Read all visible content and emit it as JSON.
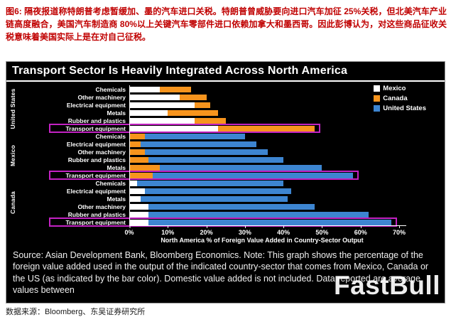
{
  "caption": {
    "text": "图6: 隔夜报道称特朗普考虑暂缓加、墨的汽车进口关税。特朗普曾威胁要向进口汽车加征 25%关税，但北美汽车产业链高度融合，美国汽车制造商 80%以上关键汽车零部件进口依赖加拿大和墨西哥。因此彭博认为，对这些商品征收关税意味着美国实际上是在对自己征税。"
  },
  "chart_data": {
    "type": "bar",
    "orientation": "horizontal",
    "stacked": true,
    "title": "Transport Sector Is Heavily Integrated Across North America",
    "xlabel": "North America % of Foreign Value Added in Country-Sector Output",
    "xlim": [
      0,
      70
    ],
    "x_ticks": [
      0,
      10,
      20,
      30,
      40,
      50,
      60,
      70
    ],
    "x_tick_labels": [
      "0%",
      "10%",
      "20%",
      "30%",
      "40%",
      "50%",
      "60%",
      "70%"
    ],
    "grid": false,
    "legend_position": "top-right",
    "background": "#000000",
    "highlight_color": "#c322c3",
    "series": [
      {
        "name": "Mexico",
        "color": "#ffffff"
      },
      {
        "name": "Canada",
        "color": "#f7941d"
      },
      {
        "name": "United States",
        "color": "#3d85d1"
      }
    ],
    "groups": [
      {
        "country": "United States",
        "rows": [
          {
            "category": "Chemicals",
            "highlight": false,
            "segments": [
              {
                "series": "Mexico",
                "value": 8
              },
              {
                "series": "Canada",
                "value": 8
              }
            ]
          },
          {
            "category": "Other machinery",
            "highlight": false,
            "segments": [
              {
                "series": "Mexico",
                "value": 13
              },
              {
                "series": "Canada",
                "value": 7
              }
            ]
          },
          {
            "category": "Electrical equipment",
            "highlight": false,
            "segments": [
              {
                "series": "Mexico",
                "value": 17
              },
              {
                "series": "Canada",
                "value": 4
              }
            ]
          },
          {
            "category": "Metals",
            "highlight": false,
            "segments": [
              {
                "series": "Mexico",
                "value": 10
              },
              {
                "series": "Canada",
                "value": 13
              }
            ]
          },
          {
            "category": "Rubber and plastics",
            "highlight": false,
            "segments": [
              {
                "series": "Mexico",
                "value": 17
              },
              {
                "series": "Canada",
                "value": 8
              }
            ]
          },
          {
            "category": "Transport equipment",
            "highlight": true,
            "segments": [
              {
                "series": "Mexico",
                "value": 23
              },
              {
                "series": "Canada",
                "value": 25
              }
            ]
          }
        ]
      },
      {
        "country": "Mexico",
        "rows": [
          {
            "category": "Chemicals",
            "highlight": false,
            "segments": [
              {
                "series": "Canada",
                "value": 4
              },
              {
                "series": "United States",
                "value": 26
              }
            ]
          },
          {
            "category": "Electrical equipment",
            "highlight": false,
            "segments": [
              {
                "series": "Canada",
                "value": 3
              },
              {
                "series": "United States",
                "value": 30
              }
            ]
          },
          {
            "category": "Other machinery",
            "highlight": false,
            "segments": [
              {
                "series": "Canada",
                "value": 4
              },
              {
                "series": "United States",
                "value": 32
              }
            ]
          },
          {
            "category": "Rubber and plastics",
            "highlight": false,
            "segments": [
              {
                "series": "Canada",
                "value": 5
              },
              {
                "series": "United States",
                "value": 35
              }
            ]
          },
          {
            "category": "Metals",
            "highlight": false,
            "segments": [
              {
                "series": "Canada",
                "value": 8
              },
              {
                "series": "United States",
                "value": 42
              }
            ]
          },
          {
            "category": "Transport equipment",
            "highlight": true,
            "segments": [
              {
                "series": "Canada",
                "value": 6
              },
              {
                "series": "United States",
                "value": 52
              }
            ]
          }
        ]
      },
      {
        "country": "Canada",
        "rows": [
          {
            "category": "Chemicals",
            "highlight": false,
            "segments": [
              {
                "series": "Mexico",
                "value": 2
              },
              {
                "series": "United States",
                "value": 38
              }
            ]
          },
          {
            "category": "Electrical equipment",
            "highlight": false,
            "segments": [
              {
                "series": "Mexico",
                "value": 4
              },
              {
                "series": "United States",
                "value": 38
              }
            ]
          },
          {
            "category": "Metals",
            "highlight": false,
            "segments": [
              {
                "series": "Mexico",
                "value": 3
              },
              {
                "series": "United States",
                "value": 38
              }
            ]
          },
          {
            "category": "Other machinery",
            "highlight": false,
            "segments": [
              {
                "series": "Mexico",
                "value": 5
              },
              {
                "series": "United States",
                "value": 43
              }
            ]
          },
          {
            "category": "Rubber and plastics",
            "highlight": false,
            "segments": [
              {
                "series": "Mexico",
                "value": 5
              },
              {
                "series": "United States",
                "value": 57
              }
            ]
          },
          {
            "category": "Transport equipment",
            "highlight": true,
            "segments": [
              {
                "series": "Mexico",
                "value": 5
              },
              {
                "series": "United States",
                "value": 63
              }
            ]
          }
        ]
      }
    ]
  },
  "source_note": "Source: Asian Development Bank, Bloomberg Economics. Note: This graph shows the percentage of the foreign value added used in the output of the indicated country-sector that comes from Mexico, Canada or the US (as indicated by the bar color). Domestic value added is not included. Data reported are average values between",
  "watermark": "FastBull",
  "footer": "数据来源：Bloomberg、东吴证券研究所"
}
